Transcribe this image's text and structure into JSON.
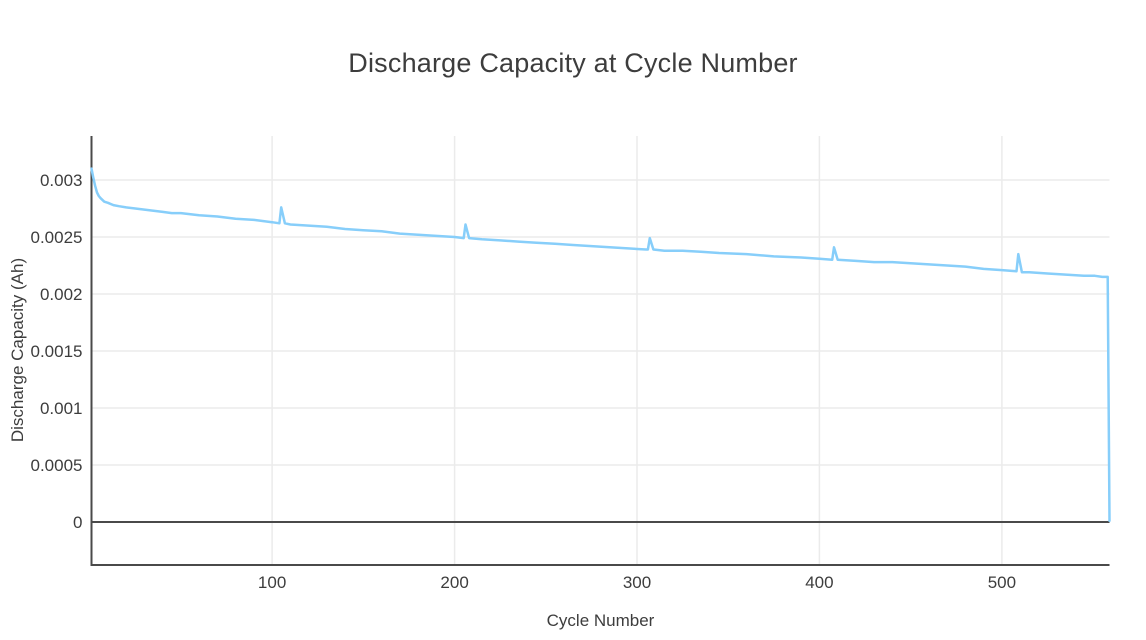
{
  "chart_data": {
    "type": "line",
    "title": "Discharge Capacity at Cycle Number",
    "xlabel": "Cycle Number",
    "ylabel": "Discharge Capacity (Ah)",
    "legend": "none",
    "grid": true,
    "xlim": [
      1,
      559
    ],
    "ylim": [
      -0.000377,
      0.003386
    ],
    "x_ticks": [
      100,
      200,
      300,
      400,
      500
    ],
    "x_tick_labels": [
      "100",
      "200",
      "300",
      "400",
      "500"
    ],
    "y_ticks": [
      0,
      0.0005,
      0.001,
      0.0015,
      0.002,
      0.0025,
      0.003
    ],
    "y_tick_labels": [
      "0",
      "0.0005",
      "0.001",
      "0.0015",
      "0.002",
      "0.0025",
      "0.003"
    ],
    "colors": {
      "line": "#87CEFA",
      "grid": "#EBEBEB",
      "axis_line": "#4a4a4a",
      "zero_line": "#4a4a4a",
      "text": "#3d3d3d",
      "background": "#ffffff"
    },
    "series": [
      {
        "name": "Discharge Capacity",
        "x": [
          1,
          2,
          3,
          4,
          5,
          6,
          8,
          10,
          13,
          16,
          20,
          25,
          30,
          35,
          40,
          45,
          50,
          60,
          70,
          80,
          90,
          100,
          104,
          105,
          107,
          110,
          120,
          130,
          140,
          150,
          160,
          170,
          180,
          190,
          200,
          205,
          206,
          208,
          215,
          225,
          235,
          245,
          255,
          265,
          275,
          285,
          295,
          305,
          306,
          307,
          309,
          315,
          325,
          335,
          345,
          360,
          375,
          390,
          400,
          407,
          408,
          410,
          420,
          430,
          440,
          450,
          460,
          470,
          480,
          490,
          500,
          508,
          509,
          511,
          515,
          525,
          535,
          545,
          551,
          555,
          558,
          559
        ],
        "y": [
          0.0031,
          0.00302,
          0.00295,
          0.00289,
          0.00286,
          0.00284,
          0.00281,
          0.0028,
          0.00278,
          0.00277,
          0.00276,
          0.00275,
          0.00274,
          0.00273,
          0.00272,
          0.00271,
          0.00271,
          0.00269,
          0.00268,
          0.00266,
          0.00265,
          0.00263,
          0.00262,
          0.00276,
          0.00262,
          0.00261,
          0.0026,
          0.00259,
          0.00257,
          0.00256,
          0.00255,
          0.00253,
          0.00252,
          0.00251,
          0.0025,
          0.00249,
          0.00261,
          0.00249,
          0.00248,
          0.00247,
          0.00246,
          0.00245,
          0.00244,
          0.00243,
          0.00242,
          0.00241,
          0.0024,
          0.00239,
          0.00239,
          0.00249,
          0.00239,
          0.00238,
          0.00238,
          0.00237,
          0.00236,
          0.00235,
          0.00233,
          0.00232,
          0.00231,
          0.0023,
          0.00241,
          0.0023,
          0.00229,
          0.00228,
          0.00228,
          0.00227,
          0.00226,
          0.00225,
          0.00224,
          0.00222,
          0.00221,
          0.0022,
          0.00235,
          0.00219,
          0.00219,
          0.00218,
          0.00217,
          0.00216,
          0.00216,
          0.00215,
          0.00215,
          1e-05
        ]
      }
    ]
  }
}
